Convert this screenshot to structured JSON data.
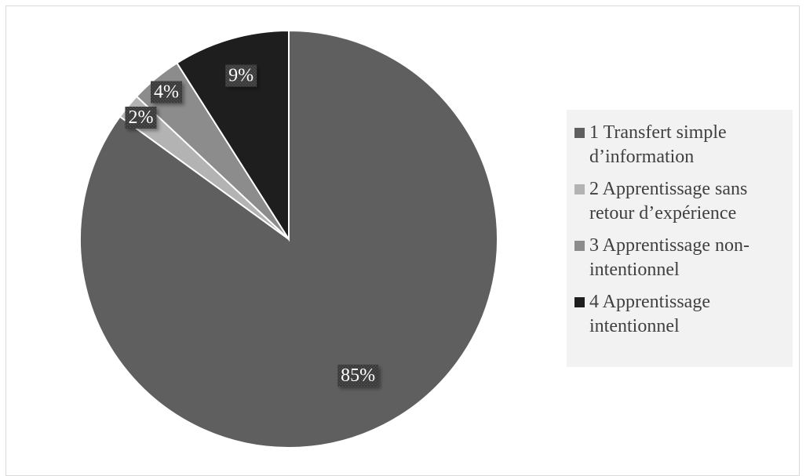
{
  "chart_data": {
    "type": "pie",
    "categories": [
      "1 Transfert simple d’information",
      "2 Apprentissage sans retour d’expérience",
      "3 Apprentissage non-intentionnel",
      "4 Apprentissage intentionnel"
    ],
    "values": [
      85,
      2,
      4,
      9
    ],
    "data_labels": [
      "85%",
      "2%",
      "4%",
      "9%"
    ],
    "colors": [
      "#5f5f5f",
      "#b3b3b3",
      "#8c8c8c",
      "#1e1e1e"
    ],
    "title": "",
    "legend_position": "right"
  },
  "legend": {
    "items": [
      {
        "label": "1 Transfert simple d’information",
        "color": "#5f5f5f"
      },
      {
        "label": "2 Apprentissage sans retour d’expérience",
        "color": "#b3b3b3"
      },
      {
        "label": "3 Apprentissage non-intentionnel",
        "color": "#8c8c8c"
      },
      {
        "label": "4 Apprentissage intentionnel",
        "color": "#1e1e1e"
      }
    ]
  }
}
